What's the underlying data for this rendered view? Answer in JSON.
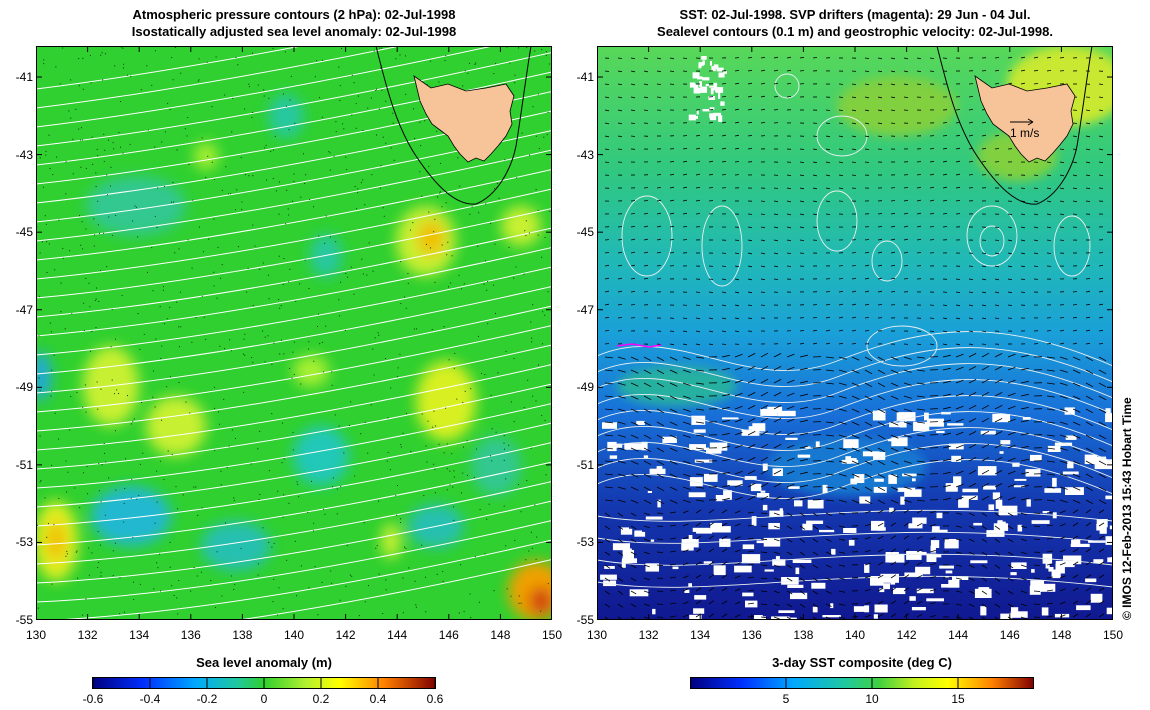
{
  "left_panel": {
    "title_line1": "Atmospheric pressure contours (2 hPa): 02-Jul-1998",
    "title_line2": "Isostatically adjusted sea level anomaly: 02-Jul-1998",
    "colorbar_label": "Sea level anomaly (m)",
    "colorbar_ticks": [
      "-0.6",
      "-0.4",
      "-0.2",
      "0",
      "0.2",
      "0.4",
      "0.6"
    ]
  },
  "right_panel": {
    "title_line1": "SST: 02-Jul-1998. SVP drifters (magenta): 29 Jun - 04 Jul.",
    "title_line2": "Sealevel contours (0.1 m) and geostrophic velocity: 02-Jul-1998.",
    "colorbar_label": "3-day SST composite (deg C)",
    "colorbar_ticks": [
      "5",
      "10",
      "15"
    ],
    "velocity_scale_label": "1 m/s"
  },
  "axes": {
    "lat_ticks": [
      "-41",
      "-43",
      "-45",
      "-47",
      "-49",
      "-51",
      "-53",
      "-55"
    ],
    "lon_ticks": [
      "130",
      "132",
      "134",
      "136",
      "138",
      "140",
      "142",
      "144",
      "146",
      "148",
      "150"
    ]
  },
  "credit": "© IMOS 12-Feb-2013 15:43 Hobart Time",
  "colors": {
    "land": "#f7c49a",
    "contour": "#ffffff",
    "drifter": "#ff00ff",
    "sla_background": "#2fd02f",
    "sst_background": "#1aa0d8"
  }
}
